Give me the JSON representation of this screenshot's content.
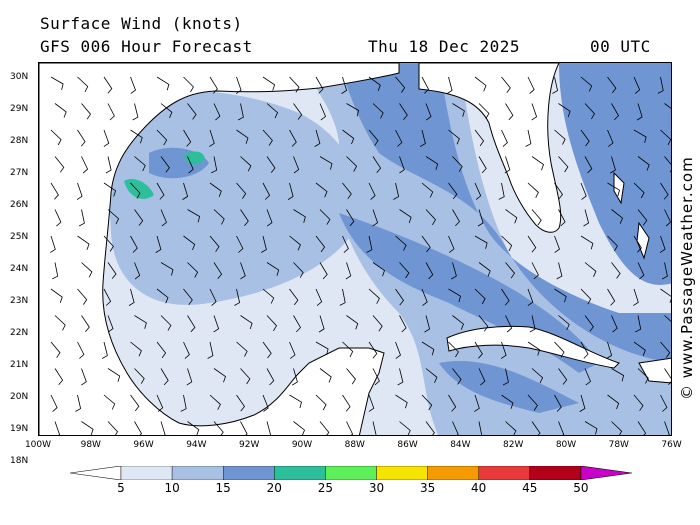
{
  "header": {
    "title": "Surface Wind (knots)",
    "model": "GFS 006 Hour Forecast",
    "date": "Thu 18 Dec 2025",
    "time": "00 UTC"
  },
  "credit": "© www.PassageWeather.com",
  "map": {
    "lat_labels": [
      "30N",
      "29N",
      "28N",
      "27N",
      "26N",
      "25N",
      "24N",
      "23N",
      "22N",
      "21N",
      "20N",
      "19N",
      "18N"
    ],
    "lon_labels": [
      "100W",
      "98W",
      "96W",
      "94W",
      "92W",
      "90W",
      "88W",
      "86W",
      "84W",
      "82W",
      "80W",
      "78W",
      "76W"
    ],
    "land_color": "#ffffff",
    "coast_color": "#000000"
  },
  "legend": {
    "ticks": [
      "5",
      "10",
      "15",
      "20",
      "25",
      "30",
      "35",
      "40",
      "45",
      "50"
    ],
    "colors": [
      "#dfe7f5",
      "#a8c0e4",
      "#6f95d3",
      "#2dbf9b",
      "#5ef05a",
      "#f5e400",
      "#f59a00",
      "#e83a3a",
      "#b3001a",
      "#c800c8"
    ]
  }
}
